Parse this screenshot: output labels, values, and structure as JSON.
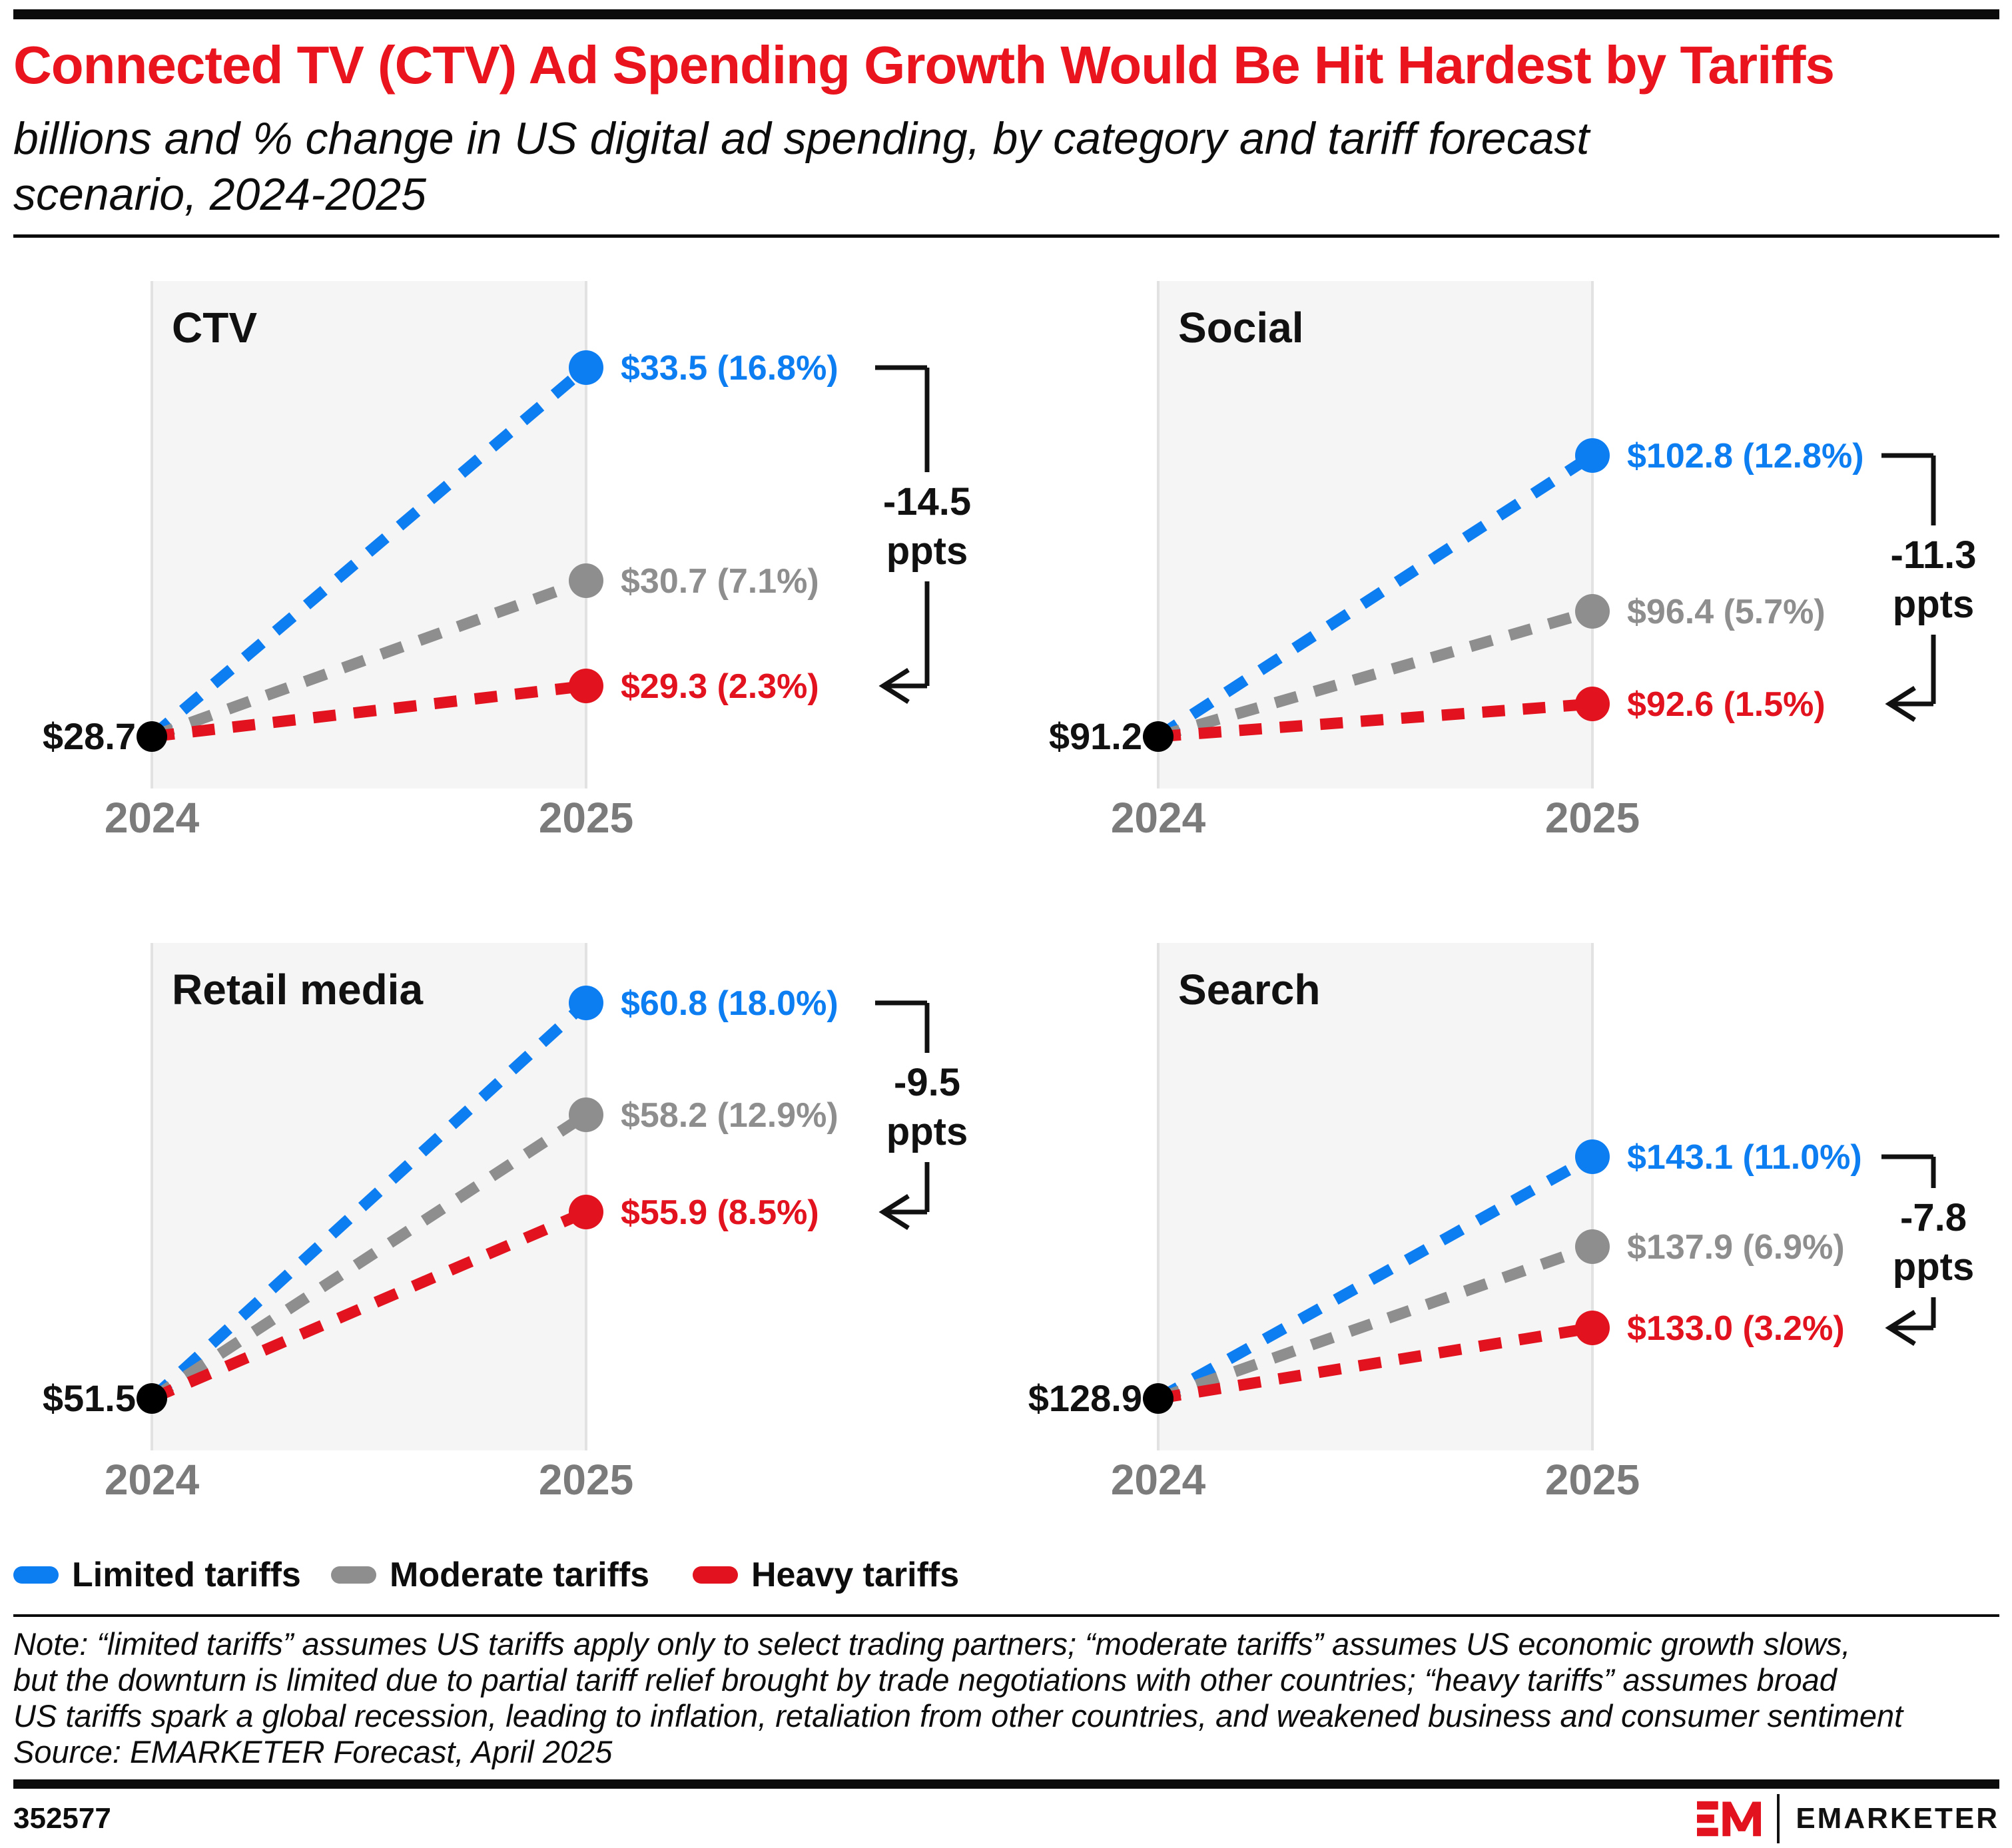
{
  "header": {
    "title": "Connected TV (CTV) Ad Spending Growth Would Be Hit Hardest by Tariffs",
    "subtitle_lines": [
      "billions and % change in US digital ad spending, by category and tariff forecast",
      "scenario, 2024-2025"
    ]
  },
  "colors": {
    "title_red": "#e9141d",
    "series": {
      "limited": "#0d7df2",
      "moderate": "#8e8e8e",
      "heavy": "#e2131e"
    },
    "start_dot": "#000000",
    "panel_bg": "#f5f5f5",
    "panel_edge": "#e2e2e2",
    "axis_label": "#7b7b7b",
    "text": "#111111"
  },
  "chart_data": {
    "type": "line",
    "subtype": "slope-chart-small-multiples",
    "x": [
      "2024",
      "2025"
    ],
    "unit": "US$ billions (growth % in parentheses)",
    "legend_position": "bottom",
    "charts": [
      {
        "title": "CTV",
        "start_label": "$28.7",
        "start_value": 28.7,
        "scenarios": [
          {
            "key": "limited",
            "name": "Limited tariffs",
            "value_billions": 33.5,
            "growth_pct": 16.8,
            "label": "$33.5 (16.8%)"
          },
          {
            "key": "moderate",
            "name": "Moderate tariffs",
            "value_billions": 30.7,
            "growth_pct": 7.1,
            "label": "$30.7 (7.1%)"
          },
          {
            "key": "heavy",
            "name": "Heavy tariffs",
            "value_billions": 29.3,
            "growth_pct": 2.3,
            "label": "$29.3 (2.3%)"
          }
        ],
        "delta_ppts": -14.5,
        "delta_label_lines": [
          "-14.5",
          "ppts"
        ]
      },
      {
        "title": "Social",
        "start_label": "$91.2",
        "start_value": 91.2,
        "scenarios": [
          {
            "key": "limited",
            "name": "Limited tariffs",
            "value_billions": 102.8,
            "growth_pct": 12.8,
            "label": "$102.8 (12.8%)"
          },
          {
            "key": "moderate",
            "name": "Moderate tariffs",
            "value_billions": 96.4,
            "growth_pct": 5.7,
            "label": "$96.4 (5.7%)"
          },
          {
            "key": "heavy",
            "name": "Heavy tariffs",
            "value_billions": 92.6,
            "growth_pct": 1.5,
            "label": "$92.6 (1.5%)"
          }
        ],
        "delta_ppts": -11.3,
        "delta_label_lines": [
          "-11.3",
          "ppts"
        ]
      },
      {
        "title": "Retail media",
        "start_label": "$51.5",
        "start_value": 51.5,
        "scenarios": [
          {
            "key": "limited",
            "name": "Limited tariffs",
            "value_billions": 60.8,
            "growth_pct": 18.0,
            "label": "$60.8 (18.0%)"
          },
          {
            "key": "moderate",
            "name": "Moderate tariffs",
            "value_billions": 58.2,
            "growth_pct": 12.9,
            "label": "$58.2 (12.9%)"
          },
          {
            "key": "heavy",
            "name": "Heavy tariffs",
            "value_billions": 55.9,
            "growth_pct": 8.5,
            "label": "$55.9 (8.5%)"
          }
        ],
        "delta_ppts": -9.5,
        "delta_label_lines": [
          "-9.5",
          "ppts"
        ]
      },
      {
        "title": "Search",
        "start_label": "$128.9",
        "start_value": 128.9,
        "scenarios": [
          {
            "key": "limited",
            "name": "Limited tariffs",
            "value_billions": 143.1,
            "growth_pct": 11.0,
            "label": "$143.1 (11.0%)"
          },
          {
            "key": "moderate",
            "name": "Moderate tariffs",
            "value_billions": 137.9,
            "growth_pct": 6.9,
            "label": "$137.9 (6.9%)"
          },
          {
            "key": "heavy",
            "name": "Heavy tariffs",
            "value_billions": 133.0,
            "growth_pct": 3.2,
            "label": "$133.0 (3.2%)"
          }
        ],
        "delta_ppts": -7.8,
        "delta_label_lines": [
          "-7.8",
          "ppts"
        ]
      }
    ]
  },
  "legend": {
    "items": [
      {
        "key": "limited",
        "label": "Limited tariffs",
        "color": "#0d7df2"
      },
      {
        "key": "moderate",
        "label": "Moderate tariffs",
        "color": "#8e8e8e"
      },
      {
        "key": "heavy",
        "label": "Heavy tariffs",
        "color": "#e2131e"
      }
    ]
  },
  "note_lines": [
    "Note: “limited tariffs” assumes US tariffs apply only to select trading partners; “moderate tariffs” assumes US economic growth slows,",
    "but the downturn is limited due to partial tariff relief brought by trade negotiations with other countries; “heavy tariffs” assumes broad",
    "US tariffs spark a global recession, leading to inflation, retaliation from other countries, and weakened business and consumer sentiment",
    "Source: EMARKETER Forecast, April 2025"
  ],
  "footer": {
    "chart_id": "352577",
    "brand": "EMARKETER"
  }
}
